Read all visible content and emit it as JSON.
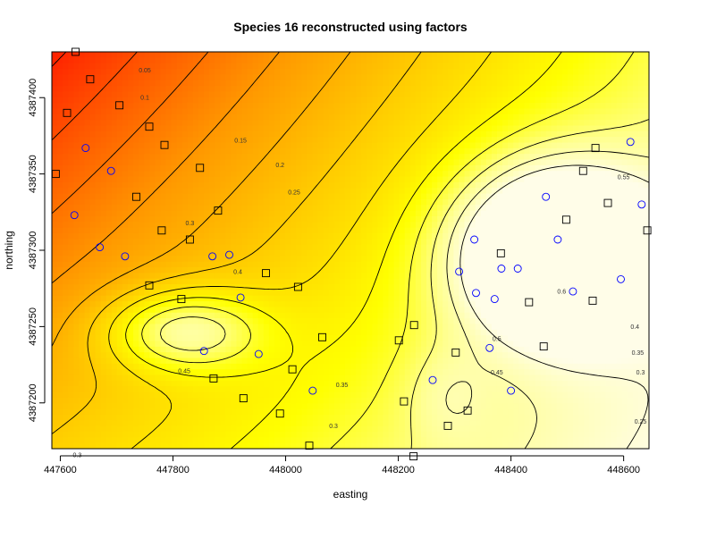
{
  "chart_data": {
    "type": "heatmap",
    "title": "Species 16 reconstructed using factors",
    "xlabel": "easting",
    "ylabel": "northing",
    "xlim": [
      447585,
      448645
    ],
    "ylim": [
      4387170,
      4387430
    ],
    "x_ticks": [
      447600,
      447800,
      448000,
      448200,
      448400,
      448600
    ],
    "y_ticks": [
      4387200,
      4387250,
      4387300,
      4387350,
      4387400
    ],
    "y_tick_labels": [
      "4387200",
      "4387250",
      "4387300",
      "4387350",
      "4387400"
    ],
    "color_scale": [
      "#ff0000",
      "#ff5000",
      "#ff9a00",
      "#ffd000",
      "#ffff00",
      "#ffff90",
      "#fffde8"
    ],
    "value_range": [
      0.0,
      0.62
    ],
    "contour_levels": [
      0.05,
      0.1,
      0.15,
      0.2,
      0.25,
      0.3,
      0.35,
      0.4,
      0.45,
      0.5,
      0.55,
      0.6
    ],
    "contour_labels": [
      {
        "text": "0.05",
        "x": 447750,
        "y": 4387418
      },
      {
        "text": "0.1",
        "x": 447750,
        "y": 4387400
      },
      {
        "text": "0.15",
        "x": 447920,
        "y": 4387372
      },
      {
        "text": "0.2",
        "x": 447990,
        "y": 4387356
      },
      {
        "text": "0.25",
        "x": 448015,
        "y": 4387338
      },
      {
        "text": "0.3",
        "x": 447830,
        "y": 4387318
      },
      {
        "text": "0.4",
        "x": 447915,
        "y": 4387286
      },
      {
        "text": "0.45",
        "x": 447820,
        "y": 4387221
      },
      {
        "text": "0.35",
        "x": 448100,
        "y": 4387212
      },
      {
        "text": "0.3",
        "x": 448085,
        "y": 4387185
      },
      {
        "text": "0.3",
        "x": 447630,
        "y": 4387166
      },
      {
        "text": "0.5",
        "x": 448375,
        "y": 4387242
      },
      {
        "text": "0.45",
        "x": 448375,
        "y": 4387220
      },
      {
        "text": "0.55",
        "x": 448600,
        "y": 4387348
      },
      {
        "text": "0.6",
        "x": 448490,
        "y": 4387273
      },
      {
        "text": "0.4",
        "x": 448620,
        "y": 4387250
      },
      {
        "text": "0.35",
        "x": 448625,
        "y": 4387233
      },
      {
        "text": "0.3",
        "x": 448630,
        "y": 4387220
      },
      {
        "text": "0.25",
        "x": 448630,
        "y": 4387188
      }
    ],
    "peaks": [
      {
        "x": 447820,
        "y": 4387247,
        "sx": 135,
        "sy": 26,
        "amp": 0.23
      },
      {
        "x": 448480,
        "y": 4387298,
        "sx": 175,
        "sy": 55,
        "amp": 0.45
      },
      {
        "x": 448285,
        "y": 4387205,
        "sx": 75,
        "sy": 32,
        "amp": 0.06
      }
    ],
    "series": [
      {
        "name": "",
        "marker": "square",
        "points": [
          [
            447627,
            4387430
          ],
          [
            447653,
            4387412
          ],
          [
            447612,
            4387390
          ],
          [
            447705,
            4387395
          ],
          [
            447758,
            4387381
          ],
          [
            447785,
            4387369
          ],
          [
            447848,
            4387354
          ],
          [
            447592,
            4387350
          ],
          [
            447735,
            4387335
          ],
          [
            447880,
            4387326
          ],
          [
            447780,
            4387313
          ],
          [
            447830,
            4387307
          ],
          [
            447965,
            4387285
          ],
          [
            447758,
            4387277
          ],
          [
            447815,
            4387268
          ],
          [
            448022,
            4387276
          ],
          [
            448065,
            4387243
          ],
          [
            448012,
            4387222
          ],
          [
            447872,
            4387216
          ],
          [
            447925,
            4387203
          ],
          [
            447990,
            4387193
          ],
          [
            448042,
            4387172
          ],
          [
            448227,
            4387165
          ],
          [
            448228,
            4387251
          ],
          [
            448201,
            4387241
          ],
          [
            448210,
            4387201
          ],
          [
            448302,
            4387233
          ],
          [
            448288,
            4387185
          ],
          [
            448323,
            4387195
          ],
          [
            448382,
            4387298
          ],
          [
            448432,
            4387266
          ],
          [
            448458,
            4387237
          ],
          [
            448545,
            4387267
          ],
          [
            448498,
            4387320
          ],
          [
            448528,
            4387352
          ],
          [
            448572,
            4387331
          ],
          [
            448550,
            4387367
          ],
          [
            448642,
            4387313
          ]
        ]
      },
      {
        "name": "",
        "marker": "circle",
        "points": [
          [
            447645,
            4387367
          ],
          [
            447690,
            4387352
          ],
          [
            447625,
            4387323
          ],
          [
            447670,
            4387302
          ],
          [
            447715,
            4387296
          ],
          [
            447870,
            4387296
          ],
          [
            447920,
            4387269
          ],
          [
            447952,
            4387232
          ],
          [
            447900,
            4387297
          ],
          [
            447855,
            4387234
          ],
          [
            448048,
            4387208
          ],
          [
            448261,
            4387215
          ],
          [
            448308,
            4387286
          ],
          [
            448335,
            4387307
          ],
          [
            448338,
            4387272
          ],
          [
            448362,
            4387236
          ],
          [
            448371,
            4387268
          ],
          [
            448383,
            4387288
          ],
          [
            448400,
            4387208
          ],
          [
            448412,
            4387288
          ],
          [
            448462,
            4387335
          ],
          [
            448483,
            4387307
          ],
          [
            448510,
            4387273
          ],
          [
            448595,
            4387281
          ],
          [
            448612,
            4387371
          ],
          [
            448632,
            4387330
          ]
        ]
      }
    ]
  }
}
